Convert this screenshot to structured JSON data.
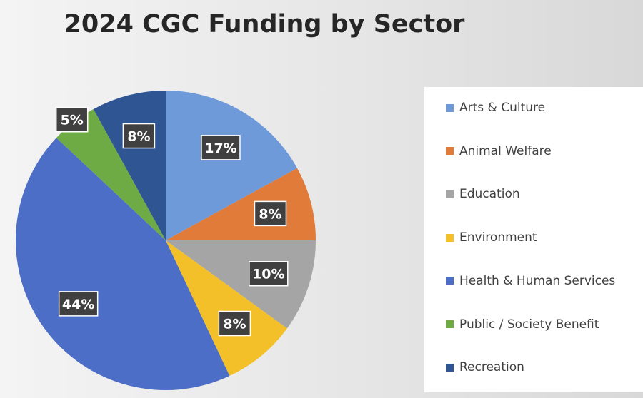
{
  "chart_data": {
    "type": "pie",
    "title": "2024 CGC Funding by Sector",
    "legend_position": "right",
    "slices": [
      {
        "name": "Arts & Culture",
        "value": 17,
        "label": "17%",
        "color": "#6f9ad9"
      },
      {
        "name": "Animal Welfare",
        "value": 8,
        "label": "8%",
        "color": "#e07b39"
      },
      {
        "name": "Education",
        "value": 10,
        "label": "10%",
        "color": "#a5a5a5"
      },
      {
        "name": "Environment",
        "value": 8,
        "label": "8%",
        "color": "#f3c02a"
      },
      {
        "name": "Health & Human Services",
        "value": 44,
        "label": "44%",
        "color": "#4d6ec6"
      },
      {
        "name": "Public / Society Benefit",
        "value": 5,
        "label": "5%",
        "color": "#6eab45"
      },
      {
        "name": "Recreation",
        "value": 8,
        "label": "8%",
        "color": "#2f5693"
      }
    ]
  }
}
